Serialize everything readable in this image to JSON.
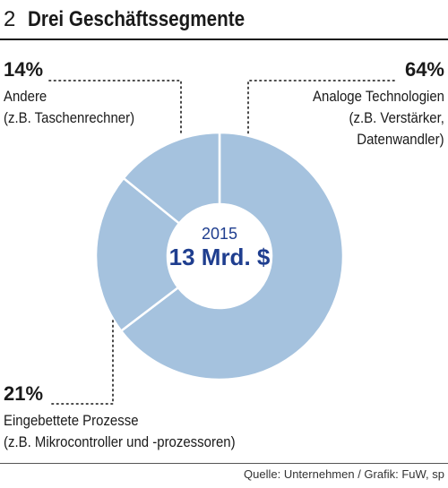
{
  "header": {
    "number": "2",
    "title": "Drei Geschäftssegmente"
  },
  "center": {
    "year": "2015",
    "total": "13 Mrd. $"
  },
  "segments": [
    {
      "pct": "14%",
      "line1": "Andere",
      "line2": "(z.B. Taschenrechner)"
    },
    {
      "pct": "64%",
      "line1": "Analoge Technologien",
      "line2": "(z.B. Verstärker,",
      "line3": "Datenwandler)"
    },
    {
      "pct": "21%",
      "line1": "Eingebettete Prozesse",
      "line2": "(z.B. Mikrocontroller und -prozessoren)"
    }
  ],
  "chart_data": {
    "type": "pie",
    "title": "Drei Geschäftssegmente",
    "center_label": "13 Mrd. $",
    "year": "2015",
    "categories": [
      "Analoge Technologien",
      "Eingebettete Prozesse",
      "Andere"
    ],
    "values": [
      64,
      21,
      14
    ],
    "unit": "%",
    "colors": {
      "slice": "#a5c2de",
      "separator": "#ffffff",
      "center_text": "#1f3e8f",
      "leader": "#333333"
    }
  },
  "footer": {
    "source": "Quelle: Unternehmen  / Grafik: FuW, sp"
  }
}
